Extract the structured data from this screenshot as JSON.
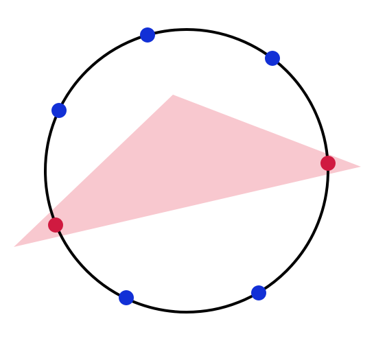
{
  "colors": {
    "background": "#ffffff",
    "circle_stroke": "#000000",
    "triangle_fill": "#f8c8cf",
    "blue_point": "#1230d6",
    "red_point": "#d01a40"
  },
  "diagram": {
    "points": [
      {
        "id": "blue-top",
        "kind": "blue"
      },
      {
        "id": "blue-upper-right",
        "kind": "blue"
      },
      {
        "id": "blue-upper-left",
        "kind": "blue"
      },
      {
        "id": "red-right",
        "kind": "red"
      },
      {
        "id": "red-left",
        "kind": "red"
      },
      {
        "id": "blue-lower-left",
        "kind": "blue"
      },
      {
        "id": "blue-lower-right",
        "kind": "blue"
      }
    ]
  }
}
